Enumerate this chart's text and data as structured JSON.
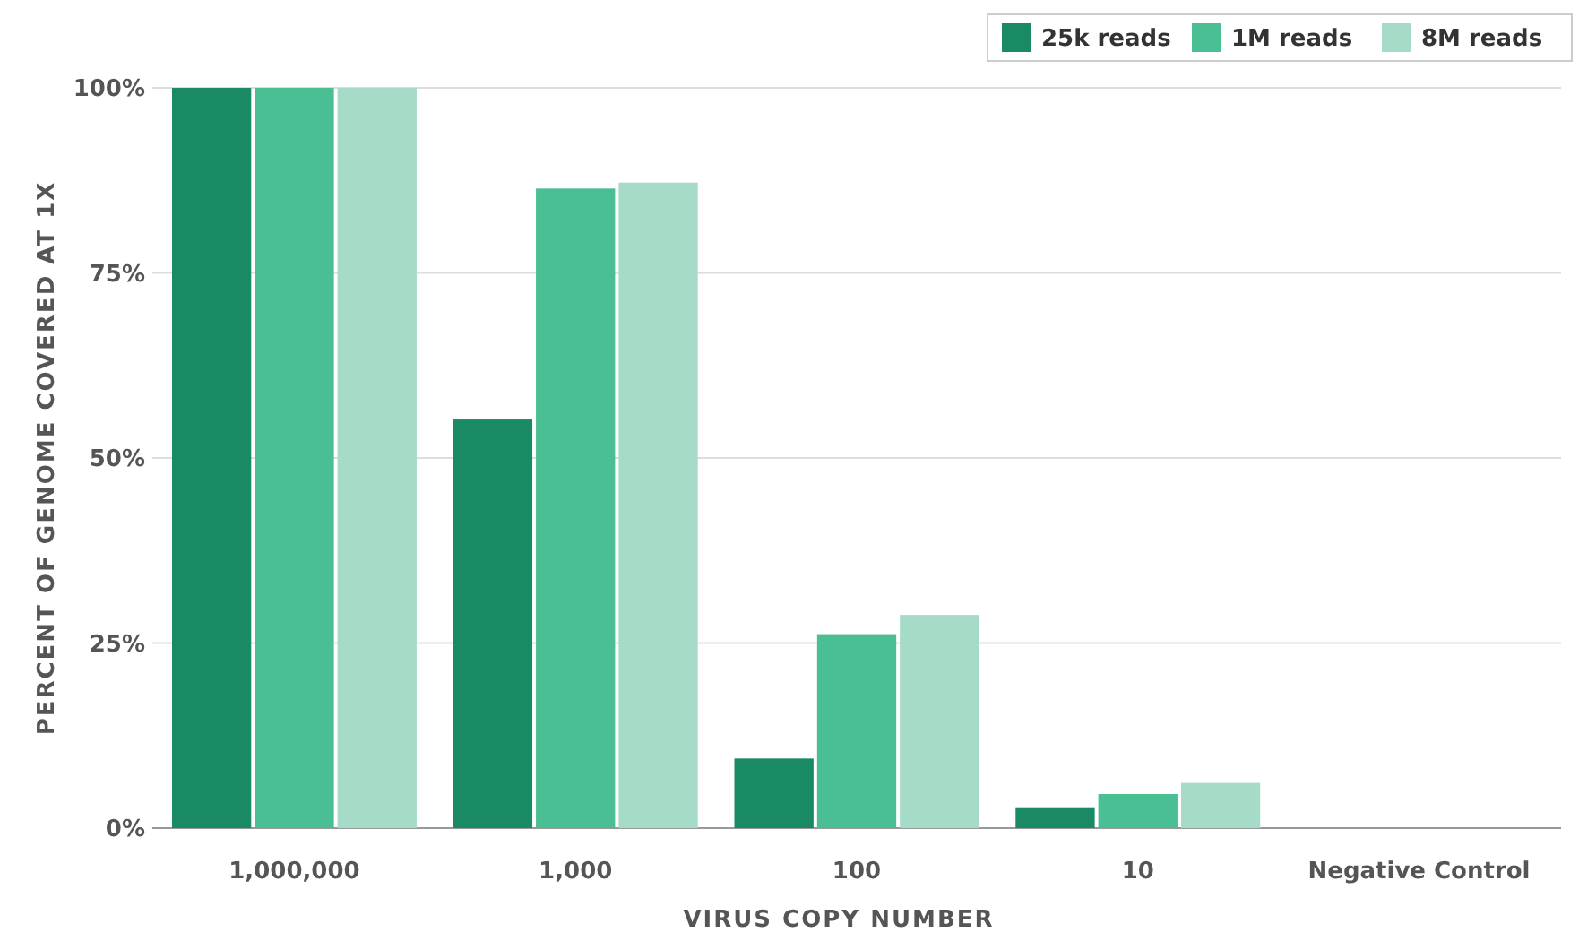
{
  "chart_data": {
    "type": "bar",
    "xlabel": "VIRUS COPY NUMBER",
    "ylabel": "PERCENT OF GENOME COVERED AT 1X",
    "categories": [
      "1,000,000",
      "1,000",
      "100",
      "10",
      "Negative Control"
    ],
    "series": [
      {
        "name": "25k reads",
        "color": "#1a8a65",
        "values": [
          100,
          55.2,
          9.4,
          2.7,
          0
        ]
      },
      {
        "name": "1M reads",
        "color": "#4abf93",
        "values": [
          100,
          86.4,
          26.2,
          4.6,
          0
        ]
      },
      {
        "name": "8M reads",
        "color": "#a6dbc8",
        "values": [
          100,
          87.2,
          28.8,
          6.1,
          0
        ]
      }
    ],
    "ylim": [
      0,
      100
    ],
    "yticks": [
      {
        "value": 0,
        "label": "0%"
      },
      {
        "value": 25,
        "label": "25%"
      },
      {
        "value": 50,
        "label": "50%"
      },
      {
        "value": 75,
        "label": "75%"
      },
      {
        "value": 100,
        "label": "100%"
      }
    ],
    "grid": "y",
    "legend": "top right"
  }
}
